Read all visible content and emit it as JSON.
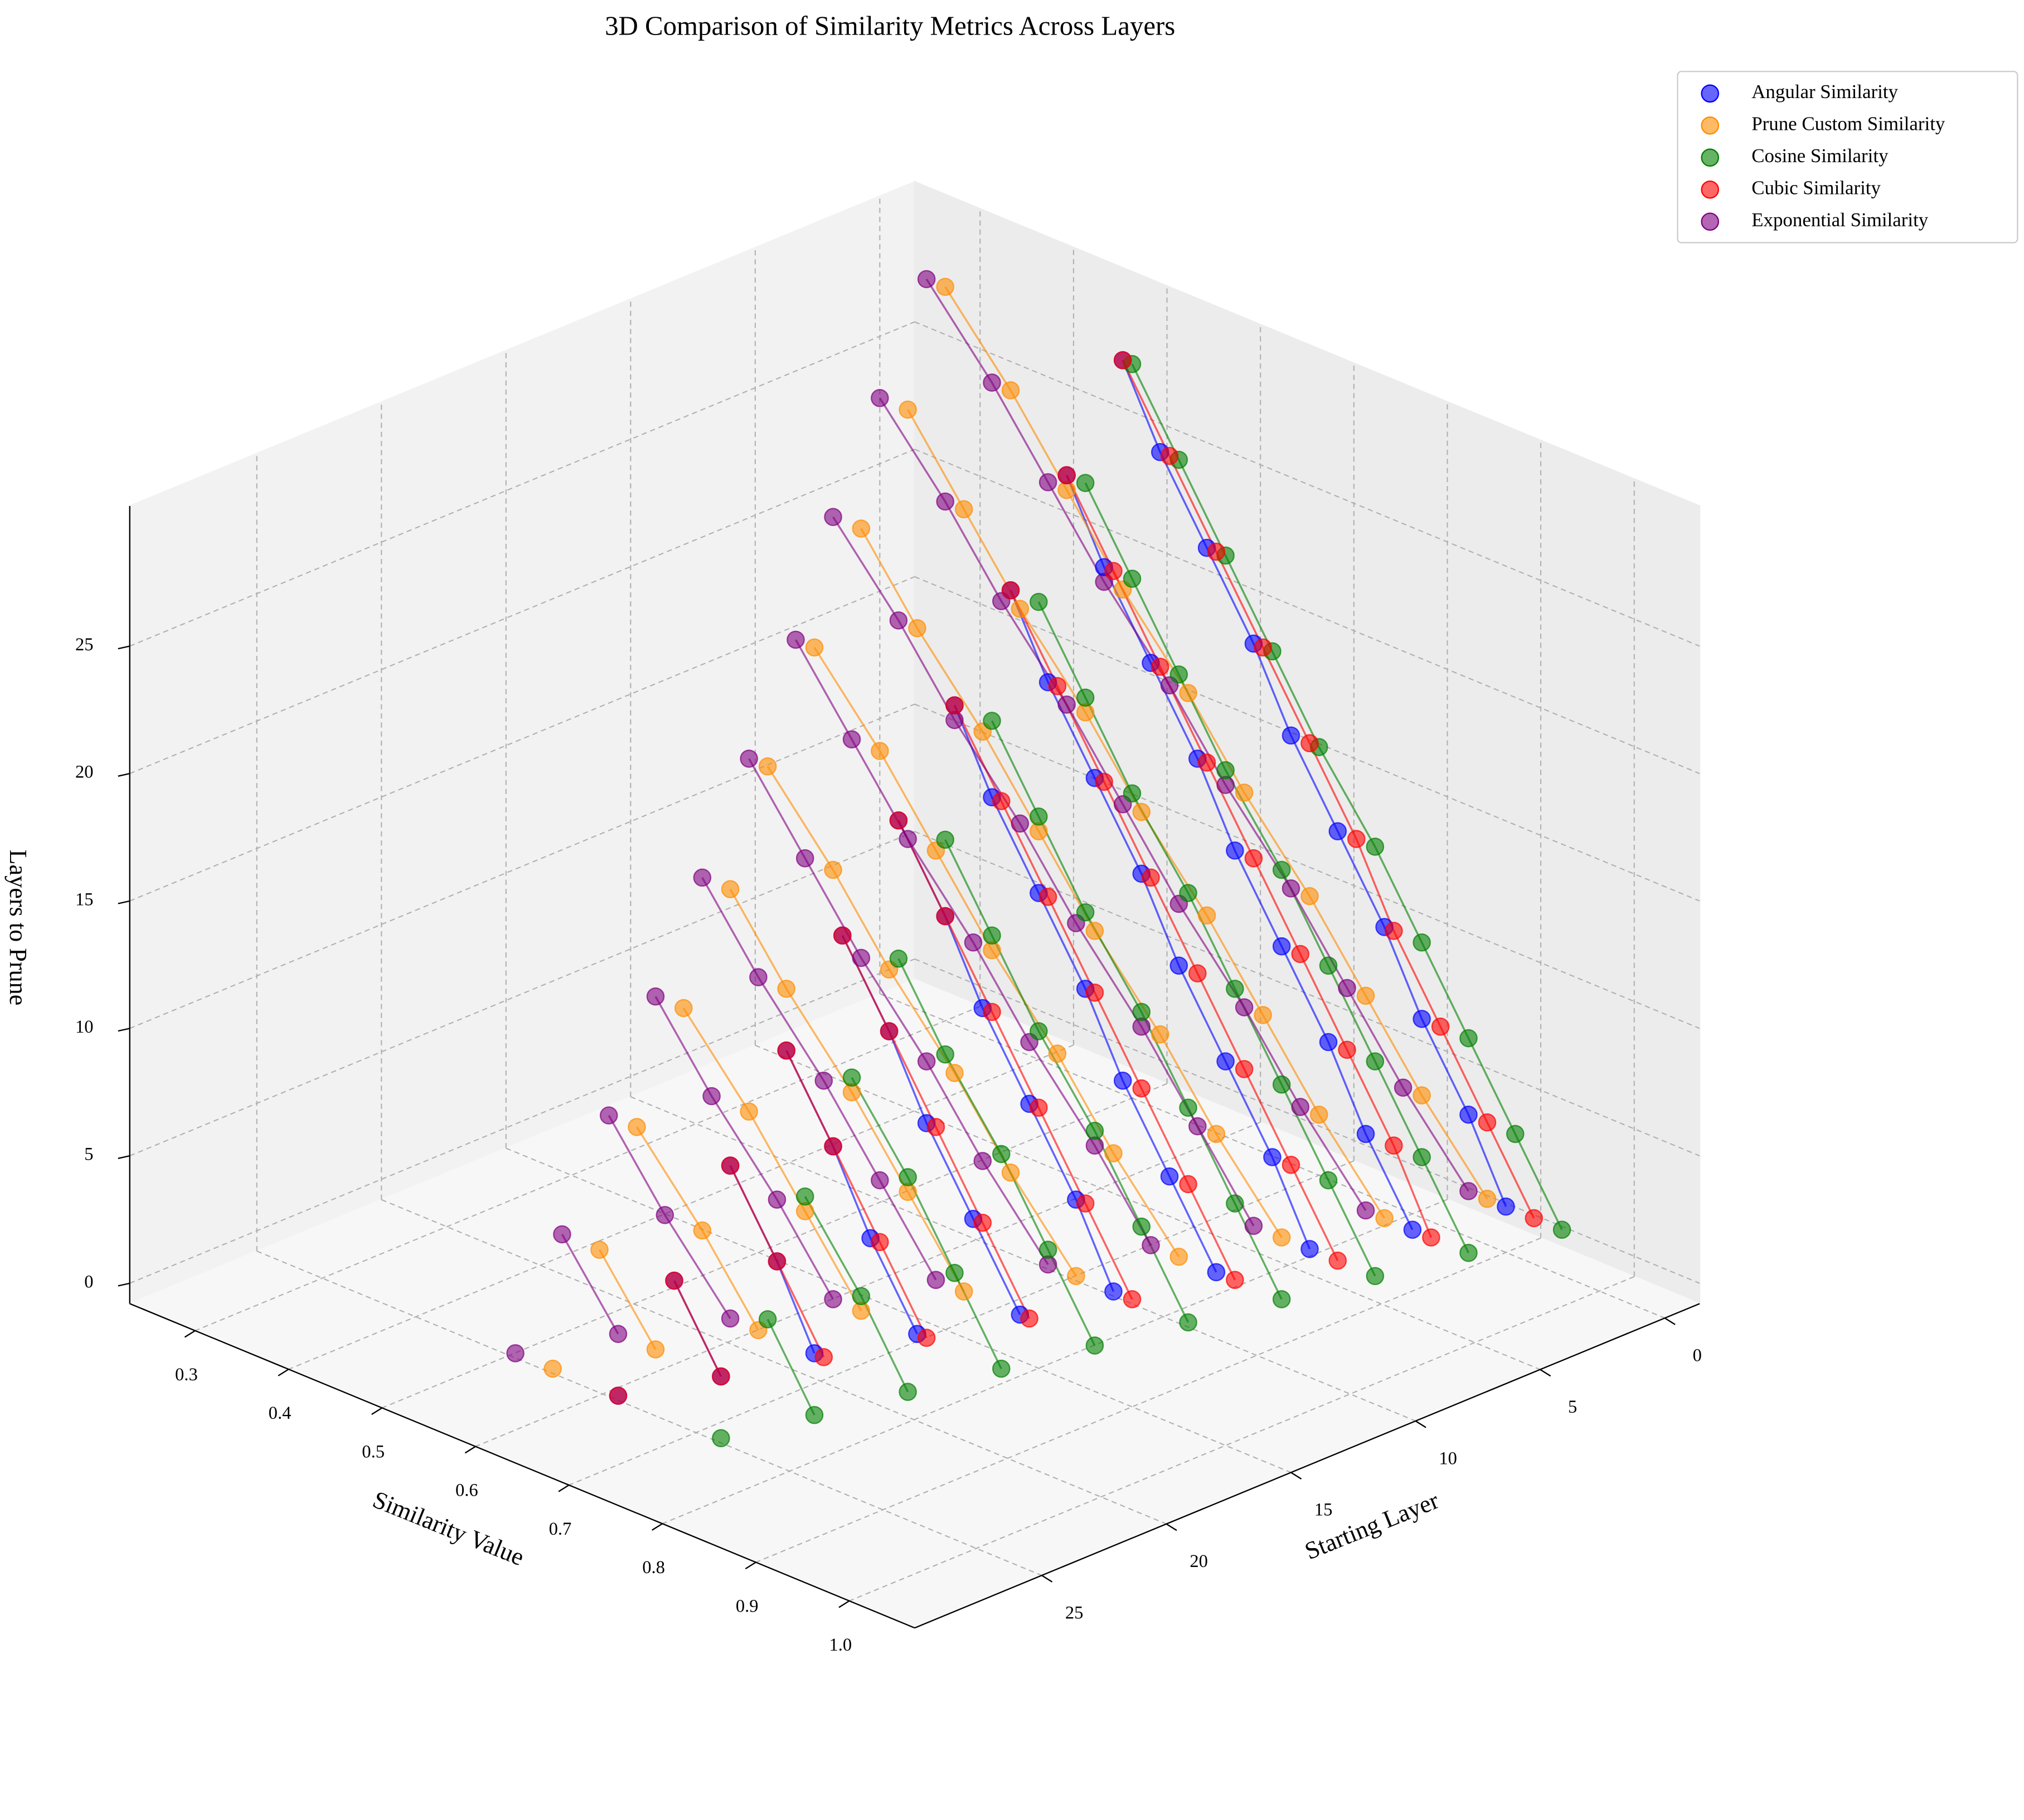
{
  "chart_data": {
    "type": "scatter3d",
    "title": "3D Comparison of Similarity Metrics Across Layers",
    "xlabel": "Starting Layer",
    "ylabel": "Similarity Value",
    "zlabel": "Layers to Prune",
    "xlim": [
      -1.4,
      30.1
    ],
    "ylim": [
      0.23,
      1.07
    ],
    "zlim": [
      -0.8,
      30.5
    ],
    "xticks": [
      0,
      5,
      10,
      15,
      20,
      25
    ],
    "yticks": [
      0.3,
      0.4,
      0.5,
      0.6,
      0.7,
      0.8,
      0.9,
      {
        "value": 1.0,
        "label": "1.0"
      }
    ],
    "zticks": [
      0,
      5,
      10,
      15,
      20,
      25
    ],
    "grid": true,
    "legend": "upper right",
    "x": [
      0,
      0,
      0,
      0,
      0,
      0,
      0,
      0,
      0,
      0,
      3,
      3,
      3,
      3,
      3,
      3,
      3,
      3,
      3,
      6,
      6,
      6,
      6,
      6,
      6,
      6,
      6,
      9,
      9,
      9,
      9,
      9,
      9,
      9,
      12,
      12,
      12,
      12,
      12,
      12,
      15,
      15,
      15,
      15,
      15,
      18,
      18,
      18,
      18,
      21,
      21,
      21,
      24,
      24,
      27
    ],
    "z": [
      1,
      4,
      7,
      10,
      13,
      16,
      19,
      22,
      25,
      28,
      1,
      4,
      7,
      10,
      13,
      16,
      19,
      22,
      25,
      1,
      4,
      7,
      10,
      13,
      16,
      19,
      22,
      1,
      4,
      7,
      10,
      13,
      16,
      19,
      1,
      4,
      7,
      10,
      13,
      16,
      1,
      4,
      7,
      10,
      13,
      1,
      4,
      7,
      10,
      1,
      4,
      7,
      1,
      4,
      1
    ],
    "series": [
      {
        "name": "Angular Similarity",
        "color": "blue",
        "values": [
          0.9,
          0.86,
          0.81,
          0.77,
          0.72,
          0.67,
          0.63,
          0.58,
          0.53,
          0.49,
          0.88,
          0.83,
          0.79,
          0.74,
          0.69,
          0.65,
          0.6,
          0.55,
          0.51,
          0.85,
          0.81,
          0.76,
          0.71,
          0.67,
          0.62,
          0.57,
          0.53,
          0.83,
          0.78,
          0.73,
          0.69,
          0.64,
          0.59,
          0.55,
          0.8,
          0.76,
          0.71,
          0.66,
          0.62,
          0.57,
          0.78,
          0.73,
          0.68,
          0.64,
          0.59,
          0.75,
          0.7,
          0.66,
          0.61,
          0.72,
          0.68,
          0.63,
          0.7,
          0.65,
          0.67
        ]
      },
      {
        "name": "Prune Custom Similarity",
        "color": "darkorange",
        "values": [
          0.88,
          0.81,
          0.75,
          0.69,
          0.62,
          0.56,
          0.49,
          0.43,
          0.37,
          0.3,
          0.85,
          0.78,
          0.72,
          0.66,
          0.59,
          0.53,
          0.46,
          0.4,
          0.34,
          0.82,
          0.75,
          0.69,
          0.62,
          0.56,
          0.5,
          0.43,
          0.37,
          0.79,
          0.72,
          0.66,
          0.59,
          0.53,
          0.47,
          0.4,
          0.76,
          0.69,
          0.63,
          0.56,
          0.5,
          0.43,
          0.72,
          0.66,
          0.6,
          0.53,
          0.47,
          0.69,
          0.63,
          0.57,
          0.5,
          0.66,
          0.6,
          0.53,
          0.63,
          0.57,
          0.6
        ]
      },
      {
        "name": "Cosine Similarity",
        "color": "green",
        "values": [
          0.96,
          0.91,
          0.86,
          0.81,
          0.76,
          0.7,
          0.65,
          0.6,
          0.55,
          0.5,
          0.94,
          0.89,
          0.84,
          0.79,
          0.74,
          0.68,
          0.63,
          0.58,
          0.53,
          0.92,
          0.87,
          0.82,
          0.77,
          0.72,
          0.66,
          0.61,
          0.56,
          0.9,
          0.85,
          0.8,
          0.75,
          0.69,
          0.64,
          0.59,
          0.88,
          0.83,
          0.78,
          0.72,
          0.67,
          0.62,
          0.86,
          0.81,
          0.76,
          0.7,
          0.65,
          0.84,
          0.79,
          0.74,
          0.68,
          0.82,
          0.77,
          0.71,
          0.8,
          0.75,
          0.78
        ]
      },
      {
        "name": "Cubic Similarity",
        "color": "red",
        "values": [
          0.93,
          0.88,
          0.83,
          0.78,
          0.74,
          0.69,
          0.64,
          0.59,
          0.54,
          0.49,
          0.9,
          0.86,
          0.81,
          0.76,
          0.71,
          0.66,
          0.61,
          0.56,
          0.51,
          0.88,
          0.83,
          0.78,
          0.73,
          0.68,
          0.63,
          0.58,
          0.53,
          0.85,
          0.8,
          0.75,
          0.7,
          0.65,
          0.6,
          0.55,
          0.82,
          0.77,
          0.72,
          0.67,
          0.62,
          0.57,
          0.79,
          0.74,
          0.69,
          0.64,
          0.59,
          0.76,
          0.71,
          0.66,
          0.61,
          0.73,
          0.68,
          0.63,
          0.7,
          0.65,
          0.67
        ]
      },
      {
        "name": "Exponential Similarity",
        "color": "purple",
        "values": [
          0.86,
          0.79,
          0.73,
          0.67,
          0.6,
          0.54,
          0.47,
          0.41,
          0.35,
          0.28,
          0.83,
          0.76,
          0.7,
          0.63,
          0.57,
          0.51,
          0.44,
          0.38,
          0.31,
          0.79,
          0.73,
          0.67,
          0.6,
          0.54,
          0.47,
          0.41,
          0.34,
          0.76,
          0.7,
          0.63,
          0.57,
          0.5,
          0.44,
          0.38,
          0.73,
          0.66,
          0.6,
          0.53,
          0.47,
          0.41,
          0.69,
          0.63,
          0.57,
          0.5,
          0.44,
          0.66,
          0.6,
          0.53,
          0.47,
          0.63,
          0.56,
          0.5,
          0.59,
          0.53,
          0.56
        ]
      }
    ]
  }
}
